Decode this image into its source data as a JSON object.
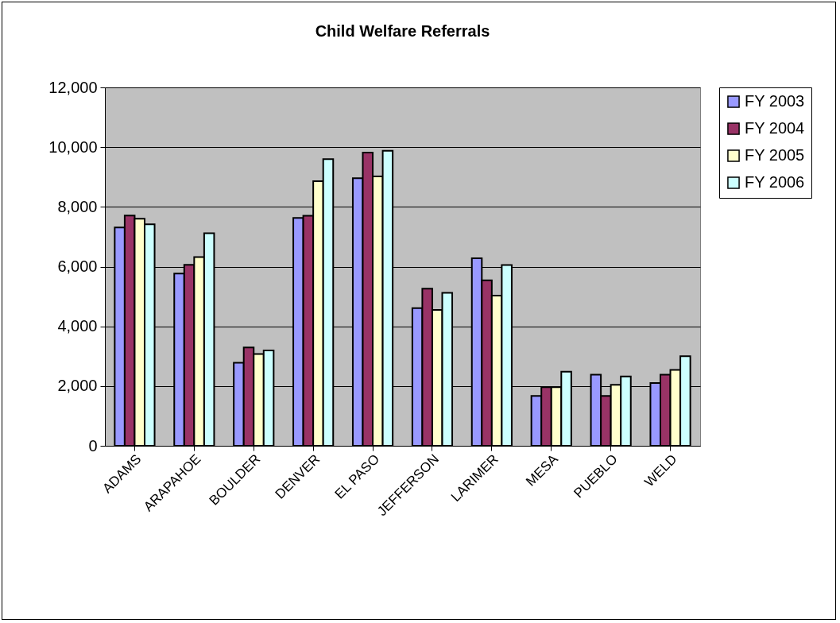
{
  "chart_data": {
    "type": "bar",
    "title": "Child Welfare Referrals",
    "categories": [
      "ADAMS",
      "ARAPAHOE",
      "BOULDER",
      "DENVER",
      "EL PASO",
      "JEFFERSON",
      "LARIMER",
      "MESA",
      "PUEBLO",
      "WELD"
    ],
    "series": [
      {
        "name": "FY 2003",
        "color": "#9999ff",
        "values": [
          7310,
          5770,
          2780,
          7630,
          8960,
          4610,
          6280,
          1670,
          2380,
          2100
        ]
      },
      {
        "name": "FY 2004",
        "color": "#993366",
        "values": [
          7710,
          6060,
          3290,
          7700,
          9820,
          5260,
          5540,
          1960,
          1670,
          2380
        ]
      },
      {
        "name": "FY 2005",
        "color": "#ffffcc",
        "values": [
          7600,
          6320,
          3070,
          8860,
          9020,
          4550,
          5030,
          1960,
          2040,
          2540
        ]
      },
      {
        "name": "FY 2006",
        "color": "#ccffff",
        "values": [
          7420,
          7120,
          3190,
          9600,
          9880,
          5120,
          6050,
          2480,
          2320,
          3000
        ]
      }
    ],
    "ylim": [
      0,
      12000
    ],
    "yticks": [
      {
        "value": 0,
        "label": "0"
      },
      {
        "value": 2000,
        "label": "2,000"
      },
      {
        "value": 4000,
        "label": "4,000"
      },
      {
        "value": 6000,
        "label": "6,000"
      },
      {
        "value": 8000,
        "label": "8,000"
      },
      {
        "value": 10000,
        "label": "10,000"
      },
      {
        "value": 12000,
        "label": "12,000"
      }
    ],
    "grid": "y",
    "legend": "right"
  }
}
